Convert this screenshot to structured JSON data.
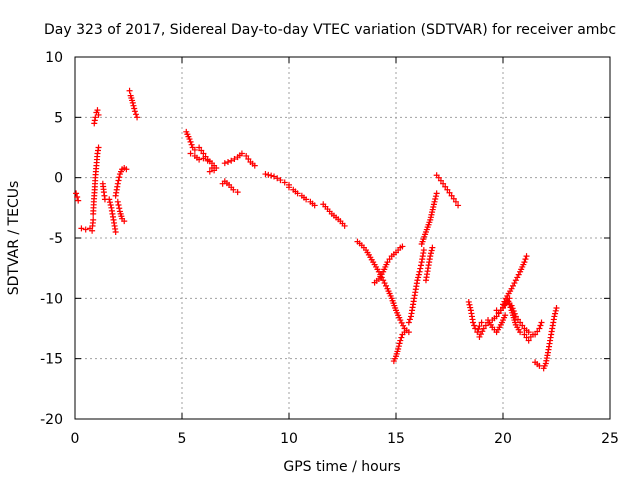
{
  "chart_data": {
    "type": "scatter",
    "title": "Day 323 of 2017, Sidereal Day-to-day VTEC variation (SDTVAR) for receiver ambc",
    "xlabel": "GPS time / hours",
    "ylabel": "SDTVAR / TECUs",
    "xlim": [
      0,
      25
    ],
    "ylim": [
      -20,
      10
    ],
    "xticks": [
      0,
      5,
      10,
      15,
      20,
      25
    ],
    "yticks": [
      -20,
      -15,
      -10,
      -5,
      0,
      5,
      10
    ],
    "xtick_labels": [
      "0",
      "5",
      "10",
      "15",
      "20",
      "25"
    ],
    "ytick_labels": [
      "-20",
      "-15",
      "-10",
      "-5",
      "0",
      "5",
      "10"
    ],
    "grid": true,
    "marker": "+",
    "color": "#ff0000",
    "series": [
      {
        "name": "SDTVAR",
        "segments": [
          [
            [
              0.05,
              -1.3
            ],
            [
              0.1,
              -1.6
            ],
            [
              0.15,
              -1.9
            ]
          ],
          [
            [
              0.3,
              -4.2
            ],
            [
              0.5,
              -4.3
            ],
            [
              0.7,
              -4.2
            ],
            [
              0.8,
              -4.4
            ],
            [
              0.82,
              -4.0
            ],
            [
              0.85,
              -3.5
            ]
          ],
          [
            [
              0.85,
              -3.0
            ],
            [
              0.88,
              -2.0
            ],
            [
              0.92,
              -1.0
            ],
            [
              0.95,
              0.0
            ],
            [
              1.0,
              1.0
            ],
            [
              1.05,
              2.0
            ],
            [
              1.1,
              2.5
            ]
          ],
          [
            [
              0.9,
              4.5
            ],
            [
              0.95,
              5.0
            ],
            [
              1.0,
              5.4
            ],
            [
              1.05,
              5.6
            ],
            [
              1.1,
              5.2
            ]
          ],
          [
            [
              1.3,
              -0.5
            ],
            [
              1.35,
              -1.2
            ],
            [
              1.4,
              -1.8
            ]
          ],
          [
            [
              1.6,
              -1.8
            ],
            [
              1.7,
              -2.5
            ],
            [
              1.8,
              -3.5
            ],
            [
              1.9,
              -4.5
            ]
          ],
          [
            [
              1.9,
              -1.5
            ],
            [
              2.0,
              -0.5
            ],
            [
              2.1,
              0.3
            ],
            [
              2.2,
              0.7
            ],
            [
              2.3,
              0.8
            ],
            [
              2.4,
              0.7
            ]
          ],
          [
            [
              2.0,
              -2.0
            ],
            [
              2.1,
              -2.8
            ],
            [
              2.2,
              -3.4
            ],
            [
              2.3,
              -3.6
            ]
          ],
          [
            [
              2.55,
              7.2
            ],
            [
              2.6,
              6.8
            ],
            [
              2.7,
              6.2
            ],
            [
              2.8,
              5.5
            ],
            [
              2.9,
              5.0
            ]
          ],
          [
            [
              5.2,
              3.8
            ],
            [
              5.35,
              3.2
            ],
            [
              5.5,
              2.5
            ],
            [
              5.6,
              2.3
            ],
            [
              5.8,
              2.5
            ],
            [
              6.0,
              2.0
            ],
            [
              6.2,
              1.5
            ],
            [
              6.4,
              1.2
            ],
            [
              6.5,
              1.0
            ],
            [
              6.6,
              0.8
            ]
          ],
          [
            [
              5.4,
              2.0
            ],
            [
              5.6,
              1.8
            ],
            [
              5.8,
              1.5
            ],
            [
              6.0,
              1.6
            ],
            [
              6.2,
              1.4
            ]
          ],
          [
            [
              6.3,
              0.5
            ],
            [
              6.4,
              0.8
            ],
            [
              6.5,
              0.6
            ]
          ],
          [
            [
              7.0,
              1.2
            ],
            [
              7.3,
              1.4
            ],
            [
              7.6,
              1.7
            ],
            [
              7.8,
              2.0
            ],
            [
              8.0,
              1.8
            ],
            [
              8.2,
              1.3
            ],
            [
              8.4,
              1.0
            ]
          ],
          [
            [
              6.9,
              -0.5
            ],
            [
              7.0,
              -0.3
            ],
            [
              7.2,
              -0.6
            ],
            [
              7.4,
              -1.0
            ],
            [
              7.6,
              -1.2
            ]
          ],
          [
            [
              8.9,
              0.3
            ],
            [
              9.3,
              0.1
            ],
            [
              9.6,
              -0.2
            ],
            [
              9.8,
              -0.4
            ],
            [
              10.0,
              -0.6
            ]
          ],
          [
            [
              10.0,
              -0.8
            ],
            [
              10.2,
              -1.0
            ],
            [
              10.4,
              -1.3
            ],
            [
              10.6,
              -1.5
            ],
            [
              10.8,
              -1.8
            ],
            [
              11.0,
              -2.0
            ],
            [
              11.2,
              -2.3
            ]
          ],
          [
            [
              11.6,
              -2.2
            ],
            [
              11.8,
              -2.6
            ],
            [
              12.0,
              -3.0
            ],
            [
              12.2,
              -3.3
            ],
            [
              12.4,
              -3.6
            ],
            [
              12.6,
              -4.0
            ]
          ],
          [
            [
              13.2,
              -5.3
            ],
            [
              13.4,
              -5.6
            ],
            [
              13.6,
              -6.0
            ],
            [
              13.8,
              -6.6
            ],
            [
              14.0,
              -7.2
            ],
            [
              14.2,
              -7.8
            ],
            [
              14.4,
              -8.5
            ],
            [
              14.6,
              -9.2
            ],
            [
              14.8,
              -10.0
            ],
            [
              15.0,
              -11.0
            ],
            [
              15.2,
              -11.8
            ],
            [
              15.4,
              -12.5
            ],
            [
              15.6,
              -12.8
            ]
          ],
          [
            [
              14.0,
              -8.7
            ],
            [
              14.2,
              -8.4
            ],
            [
              14.4,
              -7.8
            ],
            [
              14.6,
              -7.0
            ],
            [
              14.8,
              -6.5
            ],
            [
              15.0,
              -6.2
            ],
            [
              15.2,
              -5.8
            ],
            [
              15.3,
              -5.7
            ]
          ],
          [
            [
              14.9,
              -15.2
            ],
            [
              15.0,
              -14.8
            ],
            [
              15.1,
              -14.2
            ],
            [
              15.2,
              -13.5
            ],
            [
              15.3,
              -13.0
            ],
            [
              15.4,
              -12.8
            ]
          ],
          [
            [
              15.6,
              -12.0
            ],
            [
              15.7,
              -11.5
            ],
            [
              15.8,
              -10.5
            ],
            [
              15.9,
              -9.5
            ],
            [
              16.0,
              -8.5
            ],
            [
              16.1,
              -7.8
            ],
            [
              16.2,
              -7.0
            ],
            [
              16.3,
              -6.0
            ]
          ],
          [
            [
              16.4,
              -8.5
            ],
            [
              16.5,
              -7.5
            ],
            [
              16.6,
              -6.5
            ],
            [
              16.7,
              -5.8
            ]
          ],
          [
            [
              16.2,
              -5.5
            ],
            [
              16.4,
              -4.5
            ],
            [
              16.6,
              -3.5
            ],
            [
              16.8,
              -2.0
            ],
            [
              16.9,
              -1.3
            ]
          ],
          [
            [
              16.9,
              0.2
            ],
            [
              17.0,
              0.0
            ],
            [
              17.2,
              -0.5
            ],
            [
              17.4,
              -1.0
            ],
            [
              17.6,
              -1.5
            ],
            [
              17.8,
              -2.0
            ],
            [
              17.9,
              -2.3
            ]
          ],
          [
            [
              18.4,
              -10.3
            ],
            [
              18.5,
              -11.0
            ],
            [
              18.6,
              -12.0
            ],
            [
              18.7,
              -12.5
            ],
            [
              18.8,
              -12.8
            ],
            [
              18.9,
              -12.3
            ],
            [
              19.0,
              -12.0
            ]
          ],
          [
            [
              18.9,
              -13.2
            ],
            [
              19.1,
              -12.5
            ],
            [
              19.3,
              -12.0
            ],
            [
              19.5,
              -11.8
            ],
            [
              19.7,
              -11.5
            ],
            [
              19.9,
              -11.0
            ],
            [
              20.1,
              -10.5
            ],
            [
              20.3,
              -10.0
            ]
          ],
          [
            [
              19.3,
              -11.8
            ],
            [
              19.5,
              -12.4
            ],
            [
              19.7,
              -12.8
            ],
            [
              19.9,
              -12.2
            ],
            [
              20.1,
              -11.4
            ]
          ],
          [
            [
              19.7,
              -11.0
            ],
            [
              19.8,
              -11.2
            ],
            [
              20.0,
              -10.8
            ],
            [
              20.2,
              -10.2
            ],
            [
              20.4,
              -10.6
            ],
            [
              20.6,
              -11.5
            ],
            [
              20.8,
              -12.0
            ],
            [
              21.0,
              -12.5
            ],
            [
              21.2,
              -12.8
            ],
            [
              21.4,
              -13.0
            ]
          ],
          [
            [
              20.2,
              -10.0
            ],
            [
              20.3,
              -10.5
            ],
            [
              20.4,
              -11.0
            ],
            [
              20.5,
              -11.6
            ],
            [
              20.6,
              -12.2
            ],
            [
              20.8,
              -12.8
            ],
            [
              21.0,
              -13.0
            ],
            [
              21.2,
              -13.5
            ],
            [
              21.3,
              -13.2
            ]
          ],
          [
            [
              20.0,
              -10.5
            ],
            [
              20.2,
              -9.8
            ],
            [
              20.4,
              -9.2
            ],
            [
              20.6,
              -8.5
            ],
            [
              20.8,
              -7.8
            ],
            [
              21.0,
              -7.0
            ],
            [
              21.1,
              -6.5
            ]
          ],
          [
            [
              21.5,
              -13.0
            ],
            [
              21.7,
              -12.5
            ],
            [
              21.8,
              -12.0
            ]
          ],
          [
            [
              21.5,
              -15.3
            ],
            [
              21.7,
              -15.6
            ],
            [
              21.9,
              -15.8
            ],
            [
              22.0,
              -15.4
            ],
            [
              22.1,
              -14.5
            ],
            [
              22.2,
              -13.5
            ],
            [
              22.3,
              -12.5
            ],
            [
              22.4,
              -11.5
            ],
            [
              22.5,
              -10.8
            ]
          ]
        ]
      }
    ]
  }
}
